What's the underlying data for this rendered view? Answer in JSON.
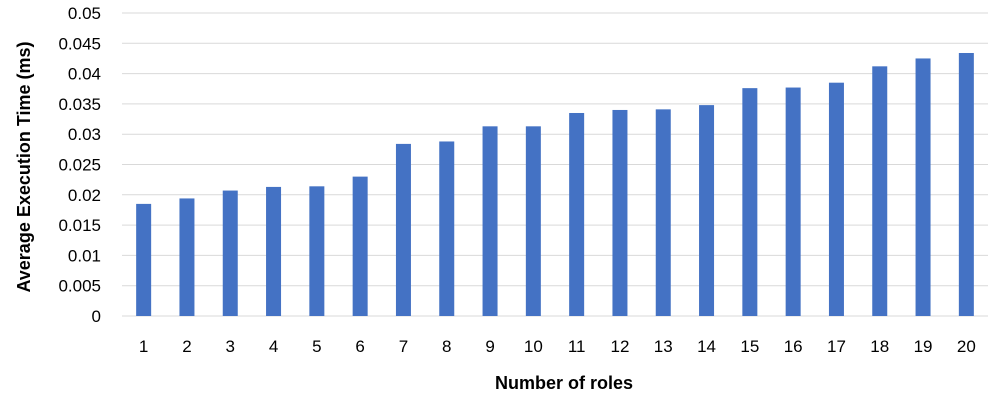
{
  "chart_data": {
    "type": "bar",
    "title": "",
    "xlabel": "Number of roles",
    "ylabel": "Average Execution Time (ms)",
    "categories": [
      "1",
      "2",
      "3",
      "4",
      "5",
      "6",
      "7",
      "8",
      "9",
      "10",
      "11",
      "12",
      "13",
      "14",
      "15",
      "16",
      "17",
      "18",
      "19",
      "20"
    ],
    "values": [
      0.0185,
      0.0194,
      0.0207,
      0.0213,
      0.0214,
      0.023,
      0.0284,
      0.0288,
      0.0313,
      0.0313,
      0.0335,
      0.034,
      0.0341,
      0.0348,
      0.0376,
      0.0377,
      0.0385,
      0.0412,
      0.0425,
      0.0434
    ],
    "ylim": [
      0,
      0.05
    ],
    "yticks": [
      "0",
      "0.005",
      "0.01",
      "0.015",
      "0.02",
      "0.025",
      "0.03",
      "0.035",
      "0.04",
      "0.045",
      "0.05"
    ],
    "grid": true,
    "legend": "none",
    "bar_color": "#4472C4",
    "grid_color": "#D9D9D9"
  }
}
